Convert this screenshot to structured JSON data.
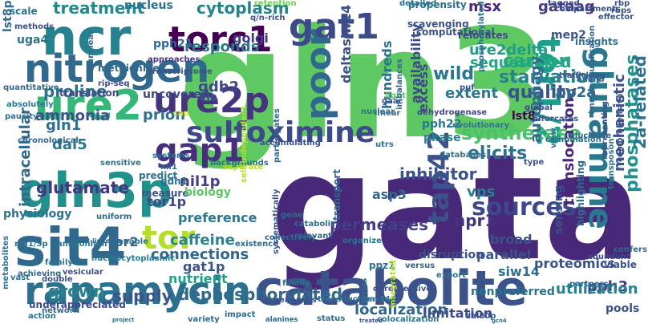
{
  "words": [
    {
      "text": "gata",
      "color": "#482878"
    },
    {
      "text": "gln3",
      "color": "#5ec962"
    },
    {
      "text": "catabolite",
      "color": "#3b528b"
    },
    {
      "text": "ncr",
      "color": "#26828e"
    },
    {
      "text": "nitrogen",
      "color": "#31688e"
    },
    {
      "text": "ure2",
      "color": "#35b779"
    },
    {
      "text": "gln3p",
      "color": "#21918c"
    },
    {
      "text": "sit4",
      "color": "#31688e"
    },
    {
      "text": "rapamycin",
      "color": "#2c728e"
    },
    {
      "text": "torc1",
      "color": "#440154"
    },
    {
      "text": "gat1",
      "color": "#3e4989"
    },
    {
      "text": "glutamine",
      "color": "#2a788e"
    },
    {
      "text": "tor1/2",
      "color": "#1f9e89"
    },
    {
      "text": "tap42",
      "color": "#3b528b"
    },
    {
      "text": "sulfoximine",
      "color": "#3e4989"
    },
    {
      "text": "ure2p",
      "color": "#46337e"
    },
    {
      "text": "gap1",
      "color": "#472d7b"
    },
    {
      "text": "poor",
      "color": "#31688e"
    },
    {
      "text": "tor",
      "color": "#b5de2b"
    },
    {
      "text": "sources",
      "color": "#3e4989"
    },
    {
      "text": "cytoplasm",
      "color": "#26828e"
    },
    {
      "text": "treatment",
      "color": "#24878e"
    },
    {
      "text": "sequestered",
      "color": "#22a884"
    },
    {
      "text": "starvation",
      "color": "#26828e"
    },
    {
      "text": "ure2delta",
      "color": "#1f9e89"
    },
    {
      "text": "wild",
      "color": "#2a788e"
    },
    {
      "text": "quality",
      "color": "#3b528b"
    },
    {
      "text": "carbon",
      "color": "#22a884"
    },
    {
      "text": "msx",
      "color": "#482878"
    },
    {
      "text": "gataag",
      "color": "#443983"
    },
    {
      "text": "phosphatases",
      "color": "#21918c"
    },
    {
      "text": "2a-related",
      "color": "#2c728e"
    },
    {
      "text": "mechanistic",
      "color": "#3b528b"
    },
    {
      "text": "responds",
      "color": "#2a788e"
    },
    {
      "text": "golgi",
      "color": "#443983"
    },
    {
      "text": "proline",
      "color": "#2c728e"
    },
    {
      "text": "gdh2",
      "color": "#3e4989"
    },
    {
      "text": "prion",
      "color": "#2c728e"
    },
    {
      "text": "hundreds",
      "color": "#2c728e"
    },
    {
      "text": "ammonia",
      "color": "#3b528b"
    },
    {
      "text": "intracellular",
      "color": "#31688e"
    },
    {
      "text": "gln1",
      "color": "#2c728e"
    },
    {
      "text": "dal5",
      "color": "#2a788e"
    },
    {
      "text": "nil1p",
      "color": "#433e85"
    },
    {
      "text": "glutamate",
      "color": "#453781"
    },
    {
      "text": "tor1p",
      "color": "#3e4989"
    },
    {
      "text": "tor2",
      "color": "#31688e"
    },
    {
      "text": "caffeine",
      "color": "#26828e"
    },
    {
      "text": "connections",
      "color": "#31688e"
    },
    {
      "text": "permeases",
      "color": "#433e85"
    },
    {
      "text": "npr1",
      "color": "#46337e"
    },
    {
      "text": "gat1p",
      "color": "#3b528b"
    },
    {
      "text": "nutrient",
      "color": "#1fa188"
    },
    {
      "text": "dephosphorylated",
      "color": "#31688e"
    },
    {
      "text": "supply",
      "color": "#3b528b"
    },
    {
      "text": "grown",
      "color": "#26828e"
    },
    {
      "text": "synthetase",
      "color": "#4ac16d"
    },
    {
      "text": "elicits",
      "color": "#2c728e"
    },
    {
      "text": "inhibitor",
      "color": "#3b528b"
    },
    {
      "text": "translocation",
      "color": "#482878"
    },
    {
      "text": "autophagy",
      "color": "#31688e"
    },
    {
      "text": "pp2a",
      "color": "#31688e"
    },
    {
      "text": "extent",
      "color": "#2a788e"
    },
    {
      "text": "excess",
      "color": "#3e4989"
    },
    {
      "text": "pkase",
      "color": "#26828e"
    },
    {
      "text": "pph3",
      "color": "#443983"
    },
    {
      "text": "siw14",
      "color": "#2c728e"
    },
    {
      "text": "utilization",
      "color": "#26828e"
    },
    {
      "text": "localization",
      "color": "#31688e"
    },
    {
      "text": "limitation",
      "color": "#3e4989"
    },
    {
      "text": "vps",
      "color": "#26828e"
    },
    {
      "text": "lst8",
      "color": "#440154"
    },
    {
      "text": "pph22",
      "color": "#2a788e"
    },
    {
      "text": "asp3",
      "color": "#31688e"
    },
    {
      "text": "availability",
      "color": "#3e4989"
    },
    {
      "text": "deltasiw14",
      "color": "#3b528b"
    },
    {
      "text": "preference",
      "color": "#2a788e"
    },
    {
      "text": "pph21",
      "color": "#31688e"
    },
    {
      "text": "nucleus",
      "color": "#2c728e"
    },
    {
      "text": "methionine",
      "color": "#31688e"
    },
    {
      "text": "translation",
      "color": "#3e4989"
    },
    {
      "text": "uncovered",
      "color": "#3e4989"
    },
    {
      "text": "uga4",
      "color": "#2c728e"
    },
    {
      "text": "scale",
      "color": "#2c728e"
    },
    {
      "text": "lst8p",
      "color": "#31688e"
    },
    {
      "text": "methods",
      "color": "#3b528b"
    },
    {
      "text": "approaches",
      "color": "#453781"
    },
    {
      "text": "transcriptome",
      "color": "#3b528b"
    },
    {
      "text": "propensity",
      "color": "#2c728e"
    },
    {
      "text": "scavenging",
      "color": "#3b528b"
    },
    {
      "text": "computational",
      "color": "#3b528b"
    },
    {
      "text": "relocates",
      "color": "#3e4989"
    },
    {
      "text": "mep2",
      "color": "#3b528b"
    },
    {
      "text": "insights",
      "color": "#2c728e"
    },
    {
      "text": "rbp",
      "color": "#3b528b"
    },
    {
      "text": "tagged",
      "color": "#3e4989"
    },
    {
      "text": "effector",
      "color": "#3b528b"
    },
    {
      "text": "q/n-rich",
      "color": "#3b528b"
    },
    {
      "text": "retention",
      "color": "#6ece58"
    },
    {
      "text": "detailed",
      "color": "#2c728e"
    },
    {
      "text": "compartments",
      "color": "#3b528b"
    },
    {
      "text": "rbps",
      "color": "#3b528b"
    },
    {
      "text": "cis",
      "color": "#3b528b"
    },
    {
      "text": "rip-seq",
      "color": "#3e4989"
    },
    {
      "text": "quantitative",
      "color": "#31688e"
    },
    {
      "text": "absolutely",
      "color": "#2a788e"
    },
    {
      "text": "paucity",
      "color": "#2c728e"
    },
    {
      "text": "measure",
      "color": "#3b528b"
    },
    {
      "text": "biology",
      "color": "#5ec962"
    },
    {
      "text": "nil1",
      "color": "#31688e"
    },
    {
      "text": "gdh1",
      "color": "#2c728e"
    },
    {
      "text": "physiology",
      "color": "#2c728e"
    },
    {
      "text": "rtg1/3p",
      "color": "#2c728e"
    },
    {
      "text": "metabolites",
      "color": "#2c728e"
    },
    {
      "text": "underappreciated",
      "color": "#3e4989"
    },
    {
      "text": "vesicular",
      "color": "#3b528b"
    },
    {
      "text": "nucleocytoplasmic",
      "color": "#2a788e"
    },
    {
      "text": "nad-linked",
      "color": "#31688e"
    },
    {
      "text": "sensitive",
      "color": "#2c728e"
    },
    {
      "text": "systems",
      "color": "#2c728e"
    },
    {
      "text": "chronological",
      "color": "#31688e"
    },
    {
      "text": "predict",
      "color": "#2c728e"
    },
    {
      "text": "separate",
      "color": "#b5de2b"
    },
    {
      "text": "uniform",
      "color": "#31688e"
    },
    {
      "text": "enable",
      "color": "#2c728e"
    },
    {
      "text": "existence",
      "color": "#31688e"
    },
    {
      "text": "catabolic",
      "color": "#2c728e"
    },
    {
      "text": "relevant",
      "color": "#31688e"
    },
    {
      "text": "systematically",
      "color": "#3b528b"
    },
    {
      "text": "export",
      "color": "#2c728e"
    },
    {
      "text": "nonpreferred",
      "color": "#2c728e"
    },
    {
      "text": "proteomics",
      "color": "#3b528b"
    },
    {
      "text": "sensing",
      "color": "#3b528b"
    },
    {
      "text": "highlighting",
      "color": "#31688e"
    },
    {
      "text": "pools",
      "color": "#3b528b"
    },
    {
      "text": "transduction",
      "color": "#2c728e"
    },
    {
      "text": "ser-344",
      "color": "#2a788e"
    },
    {
      "text": "derepressive",
      "color": "#3b528b"
    },
    {
      "text": "impact",
      "color": "#31688e"
    },
    {
      "text": "colocalization",
      "color": "#2c728e"
    },
    {
      "text": "alanines",
      "color": "#31688e"
    },
    {
      "text": "ppz1",
      "color": "#2c728e"
    },
    {
      "text": "transport",
      "color": "#31688e"
    },
    {
      "text": "parallel",
      "color": "#3b528b"
    },
    {
      "text": "broad",
      "color": "#3b528b"
    },
    {
      "text": "disruption",
      "color": "#3b528b"
    },
    {
      "text": "viable",
      "color": "#3b528b"
    },
    {
      "text": "abundant",
      "color": "#3e4989"
    },
    {
      "text": "confers",
      "color": "#31688e"
    },
    {
      "text": "collectively",
      "color": "#31688e"
    },
    {
      "text": "finally",
      "color": "#2c728e"
    },
    {
      "text": "organize",
      "color": "#2c728e"
    },
    {
      "text": "mrnas",
      "color": "#31688e"
    },
    {
      "text": "treated",
      "color": "#3b528b"
    },
    {
      "text": "status",
      "color": "#2c728e"
    },
    {
      "text": "dal80p",
      "color": "#3b528b"
    },
    {
      "text": "partners",
      "color": "#31688e"
    },
    {
      "text": "gcn4",
      "color": "#2c728e"
    },
    {
      "text": "variety",
      "color": "#31688e"
    },
    {
      "text": "project",
      "color": "#2c728e"
    },
    {
      "text": "network",
      "color": "#31688e"
    },
    {
      "text": "double",
      "color": "#3b528b"
    },
    {
      "text": "family",
      "color": "#2c728e"
    },
    {
      "text": "action",
      "color": "#2c728e"
    },
    {
      "text": "achieving",
      "color": "#31688e"
    },
    {
      "text": "ammonium",
      "color": "#2c728e"
    },
    {
      "text": "vast",
      "color": "#2c728e"
    },
    {
      "text": "backgrounds",
      "color": "#2c728e"
    },
    {
      "text": "participates",
      "color": "#31688e"
    },
    {
      "text": "accumulating",
      "color": "#3b528b"
    },
    {
      "text": "light",
      "color": "#5ec962"
    },
    {
      "text": "gaac",
      "color": "#3b528b"
    },
    {
      "text": "linear",
      "color": "#31688e"
    },
    {
      "text": "imbalances",
      "color": "#31688e"
    },
    {
      "text": "dehydrogenase",
      "color": "#3e4989"
    },
    {
      "text": "phosphorylated",
      "color": "#2c728e"
    },
    {
      "text": "puf",
      "color": "#3b528b"
    },
    {
      "text": "evolutionary",
      "color": "#2c728e"
    },
    {
      "text": "databases",
      "color": "#2c728e"
    },
    {
      "text": "elucidate",
      "color": "#31688e"
    },
    {
      "text": "combination",
      "color": "#2c728e"
    },
    {
      "text": "type",
      "color": "#3b528b"
    },
    {
      "text": "trafficking",
      "color": "#3b528b"
    },
    {
      "text": "amino",
      "color": "#31688e"
    },
    {
      "text": "immunopurification",
      "color": "#31688e"
    },
    {
      "text": "representing",
      "color": "#3b528b"
    },
    {
      "text": "comprehensive",
      "color": "#3b528b"
    },
    {
      "text": "global",
      "color": "#3e4989"
    },
    {
      "text": "bifurcates",
      "color": "#3b528b"
    },
    {
      "text": "unclear",
      "color": "#31688e"
    },
    {
      "text": "transposon",
      "color": "#2c728e"
    },
    {
      "text": "utrs",
      "color": "#2c728e"
    },
    {
      "text": "view",
      "color": "#2c728e"
    },
    {
      "text": "nuclear",
      "color": "#2c728e"
    },
    {
      "text": "genomics",
      "color": "#3b528b"
    },
    {
      "text": "integrated",
      "color": "#b5de2b"
    },
    {
      "text": "versus",
      "color": "#31688e"
    },
    {
      "text": "self-independent",
      "color": "#b5de2b"
    },
    {
      "text": "gene",
      "color": "#31688e"
    },
    {
      "text": "cap",
      "color": "#dde318"
    }
  ]
}
